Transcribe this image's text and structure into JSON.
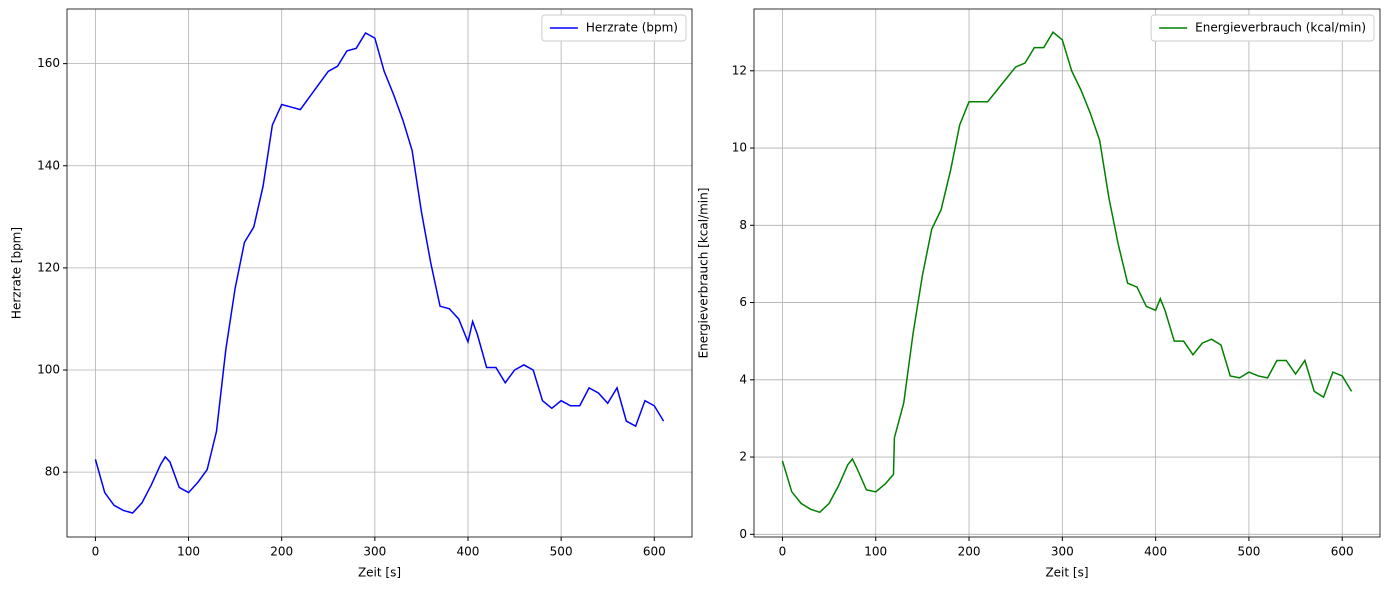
{
  "chart_data": [
    {
      "type": "line",
      "xlabel": "Zeit [s]",
      "ylabel": "Herzrate [bpm]",
      "x": [
        0,
        10,
        20,
        30,
        40,
        50,
        60,
        70,
        75,
        80,
        90,
        100,
        110,
        120,
        130,
        140,
        150,
        160,
        170,
        180,
        190,
        200,
        210,
        220,
        230,
        240,
        250,
        260,
        270,
        280,
        290,
        300,
        310,
        320,
        330,
        340,
        350,
        360,
        370,
        380,
        390,
        400,
        405,
        410,
        420,
        430,
        440,
        450,
        460,
        470,
        480,
        490,
        500,
        510,
        520,
        530,
        540,
        550,
        560,
        570,
        580,
        590,
        600,
        610
      ],
      "series": [
        {
          "name": "Herzrate (bpm)",
          "color": "#0000ff",
          "values": [
            82.5,
            76,
            73.5,
            72.5,
            72,
            74,
            77.5,
            81.5,
            83,
            82,
            77,
            76,
            78,
            80.5,
            88,
            104,
            116,
            125,
            128,
            136,
            148,
            152,
            151.5,
            151,
            153.5,
            156,
            158.5,
            159.5,
            162.5,
            163,
            166,
            165,
            158.5,
            154,
            149,
            143,
            131,
            121,
            112.5,
            112,
            110,
            105.5,
            109.5,
            107,
            100.5,
            100.5,
            97.5,
            100,
            101,
            100,
            94,
            92.5,
            94,
            93,
            93,
            96.5,
            95.5,
            93.5,
            96.5,
            90,
            89,
            94,
            93,
            90
          ]
        }
      ],
      "xlim": [
        -30.5,
        640.5
      ],
      "ylim": [
        67.3,
        170.7
      ],
      "xticks": [
        0,
        100,
        200,
        300,
        400,
        500,
        600
      ],
      "yticks": [
        80,
        100,
        120,
        140,
        160
      ],
      "grid": true,
      "legend": "upper right"
    },
    {
      "type": "line",
      "xlabel": "Zeit [s]",
      "ylabel": "Energieverbrauch [kcal/min]",
      "x": [
        0,
        10,
        20,
        30,
        40,
        50,
        60,
        70,
        75,
        80,
        90,
        100,
        110,
        119,
        120,
        130,
        140,
        150,
        160,
        170,
        180,
        190,
        200,
        210,
        220,
        230,
        240,
        250,
        260,
        270,
        280,
        290,
        300,
        310,
        320,
        330,
        340,
        350,
        360,
        370,
        380,
        390,
        400,
        405,
        410,
        420,
        430,
        440,
        450,
        460,
        470,
        480,
        490,
        500,
        510,
        520,
        530,
        540,
        550,
        560,
        570,
        580,
        590,
        600,
        610
      ],
      "series": [
        {
          "name": "Energieverbrauch (kcal/min)",
          "color": "#008000",
          "values": [
            1.9,
            1.1,
            0.8,
            0.65,
            0.57,
            0.8,
            1.25,
            1.8,
            1.95,
            1.7,
            1.15,
            1.1,
            1.3,
            1.55,
            2.5,
            3.4,
            5.2,
            6.7,
            7.9,
            8.4,
            9.4,
            10.6,
            11.2,
            11.2,
            11.2,
            11.5,
            11.8,
            12.1,
            12.2,
            12.6,
            12.6,
            13.0,
            12.8,
            12.0,
            11.5,
            10.9,
            10.2,
            8.7,
            7.5,
            6.5,
            6.4,
            5.9,
            5.8,
            6.1,
            5.8,
            5.0,
            5.0,
            4.65,
            4.95,
            5.05,
            4.9,
            4.1,
            4.05,
            4.2,
            4.1,
            4.05,
            4.5,
            4.5,
            4.15,
            4.5,
            3.7,
            3.55,
            4.2,
            4.1,
            3.7
          ]
        }
      ],
      "xlim": [
        -30.5,
        640.5
      ],
      "ylim": [
        -0.07,
        13.6
      ],
      "xticks": [
        0,
        100,
        200,
        300,
        400,
        500,
        600
      ],
      "yticks": [
        0,
        2,
        4,
        6,
        8,
        10,
        12
      ],
      "grid": true,
      "legend": "upper right"
    }
  ]
}
